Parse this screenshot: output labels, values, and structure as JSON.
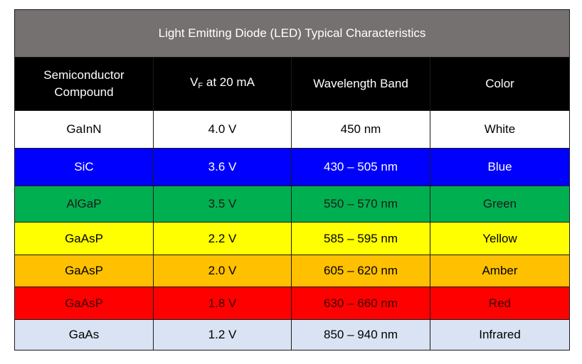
{
  "table": {
    "title": "Light Emitting Diode (LED) Typical Characteristics",
    "headers": {
      "compound": "Semiconductor Compound",
      "vf_main": "V",
      "vf_sub": "F",
      "vf_rest": " at 20 mA",
      "wavelength": "Wavelength Band",
      "color": "Color"
    },
    "rows": [
      {
        "compound": "GaInN",
        "vf": "4.0 V",
        "wavelength": "450 nm",
        "color": "White",
        "bg": "#ffffff",
        "fg": "#000000"
      },
      {
        "compound": "SiC",
        "vf": "3.6 V",
        "wavelength": "430 – 505 nm",
        "color": "Blue",
        "bg": "#0000ff",
        "fg": "#ffffff"
      },
      {
        "compound": "AlGaP",
        "vf": "3.5 V",
        "wavelength": "550 – 570 nm",
        "color": "Green",
        "bg": "#00b050",
        "fg": "#1a1a1a"
      },
      {
        "compound": "GaAsP",
        "vf": "2.2 V",
        "wavelength": "585 – 595 nm",
        "color": "Yellow",
        "bg": "#ffff00",
        "fg": "#000000"
      },
      {
        "compound": "GaAsP",
        "vf": "2.0 V",
        "wavelength": "605 – 620 nm",
        "color": "Amber",
        "bg": "#ffc000",
        "fg": "#000000"
      },
      {
        "compound": "GaAsP",
        "vf": "1.8 V",
        "wavelength": "630 – 660 nm",
        "color": "Red",
        "bg": "#ff0000",
        "fg": "#3a0000"
      },
      {
        "compound": "GaAs",
        "vf": "1.2 V",
        "wavelength": "850 – 940 nm",
        "color": "Infrared",
        "bg": "#dae3f3",
        "fg": "#000000"
      }
    ]
  },
  "colors": {
    "title_bg": "#767171",
    "header_bg": "#000000"
  }
}
